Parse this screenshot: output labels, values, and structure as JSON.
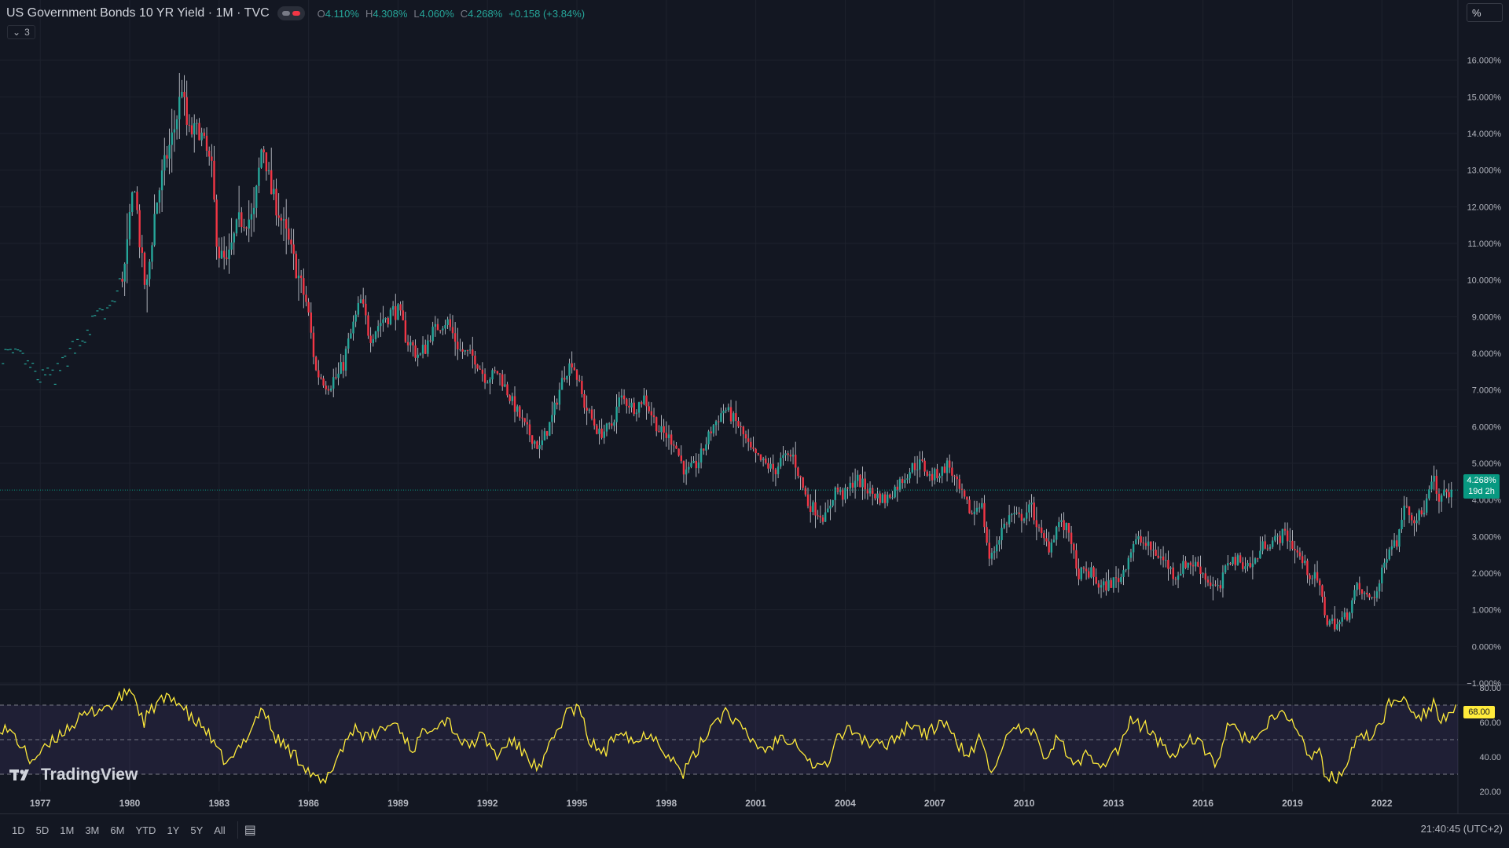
{
  "header": {
    "title": "US Government Bonds 10 YR Yield · 1M · TVC",
    "ohlc": [
      {
        "k": "O",
        "v": "4.110%"
      },
      {
        "k": "H",
        "v": "4.308%"
      },
      {
        "k": "L",
        "v": "4.060%"
      },
      {
        "k": "C",
        "v": "4.268%"
      },
      {
        "k": "",
        "v": "+0.158 (+3.84%)"
      }
    ],
    "collapse_count": "3"
  },
  "unit_label": "%",
  "current_price": {
    "value": "4.268%",
    "countdown": "19d 2h"
  },
  "rsi_current": "68.00",
  "branding": "TradingView",
  "ranges": [
    "1D",
    "5D",
    "1M",
    "3M",
    "6M",
    "YTD",
    "1Y",
    "5Y",
    "All"
  ],
  "clock": "21:40:45 (UTC+2)",
  "colors": {
    "up": "#26a69a",
    "down": "#f23645",
    "rsi": "#ffeb3b",
    "rsi_band": "#7e57c2",
    "bg": "#131722",
    "grid": "#1e222d"
  },
  "chart_data": [
    {
      "type": "candlestick",
      "title": "US Government Bonds 10 YR Yield · 1M · TVC",
      "y_unit": "%",
      "ylim": [
        -1.0,
        17.0
      ],
      "y_ticks": [
        "16.000%",
        "15.000%",
        "14.000%",
        "13.000%",
        "12.000%",
        "11.000%",
        "10.000%",
        "9.000%",
        "8.000%",
        "7.000%",
        "6.000%",
        "5.000%",
        "4.000%",
        "3.000%",
        "2.000%",
        "1.000%",
        "0.000%",
        "−1.000%"
      ],
      "y_tick_values": [
        16,
        15,
        14,
        13,
        12,
        11,
        10,
        9,
        8,
        7,
        6,
        5,
        4,
        3,
        2,
        1,
        0,
        -1
      ],
      "x_ticks": [
        "1977",
        "1980",
        "1983",
        "1986",
        "1989",
        "1992",
        "1995",
        "1998",
        "2001",
        "2004",
        "2007",
        "2010",
        "2013",
        "2016",
        "2019",
        "2022"
      ],
      "x_tick_years": [
        1977,
        1980,
        1983,
        1986,
        1989,
        1992,
        1995,
        1998,
        2001,
        2004,
        2007,
        2010,
        2013,
        2016,
        2019,
        2022
      ],
      "xlim": [
        1975.7,
        2024.6
      ],
      "grid": true,
      "anchors_year_yield": [
        [
          1975.8,
          8.0
        ],
        [
          1976.5,
          7.8
        ],
        [
          1977.0,
          7.3
        ],
        [
          1977.6,
          7.4
        ],
        [
          1978.2,
          8.2
        ],
        [
          1978.9,
          8.9
        ],
        [
          1979.5,
          9.3
        ],
        [
          1979.9,
          10.4
        ],
        [
          1980.2,
          12.8
        ],
        [
          1980.4,
          10.9
        ],
        [
          1980.6,
          9.6
        ],
        [
          1980.9,
          11.9
        ],
        [
          1981.2,
          13.1
        ],
        [
          1981.6,
          14.3
        ],
        [
          1981.8,
          15.3
        ],
        [
          1982.0,
          14.0
        ],
        [
          1982.4,
          14.1
        ],
        [
          1982.8,
          13.0
        ],
        [
          1983.0,
          10.8
        ],
        [
          1983.3,
          10.4
        ],
        [
          1983.7,
          11.6
        ],
        [
          1984.2,
          11.7
        ],
        [
          1984.5,
          13.8
        ],
        [
          1984.8,
          12.4
        ],
        [
          1985.2,
          11.5
        ],
        [
          1985.6,
          10.4
        ],
        [
          1986.0,
          9.3
        ],
        [
          1986.3,
          7.5
        ],
        [
          1986.7,
          7.2
        ],
        [
          1987.1,
          7.4
        ],
        [
          1987.5,
          8.6
        ],
        [
          1987.8,
          9.4
        ],
        [
          1988.1,
          8.5
        ],
        [
          1988.6,
          9.0
        ],
        [
          1989.0,
          9.2
        ],
        [
          1989.4,
          8.3
        ],
        [
          1989.8,
          7.9
        ],
        [
          1990.2,
          8.6
        ],
        [
          1990.7,
          8.9
        ],
        [
          1991.1,
          8.1
        ],
        [
          1991.6,
          7.9
        ],
        [
          1992.0,
          7.3
        ],
        [
          1992.4,
          7.5
        ],
        [
          1992.8,
          6.8
        ],
        [
          1993.3,
          6.0
        ],
        [
          1993.8,
          5.4
        ],
        [
          1994.2,
          6.2
        ],
        [
          1994.6,
          7.4
        ],
        [
          1994.9,
          7.8
        ],
        [
          1995.3,
          6.6
        ],
        [
          1995.8,
          5.8
        ],
        [
          1996.2,
          6.0
        ],
        [
          1996.5,
          6.8
        ],
        [
          1997.0,
          6.5
        ],
        [
          1997.3,
          6.8
        ],
        [
          1997.8,
          5.9
        ],
        [
          1998.3,
          5.6
        ],
        [
          1998.7,
          4.7
        ],
        [
          1999.1,
          5.0
        ],
        [
          1999.6,
          6.0
        ],
        [
          2000.0,
          6.5
        ],
        [
          2000.5,
          6.0
        ],
        [
          2000.9,
          5.3
        ],
        [
          2001.3,
          5.0
        ],
        [
          2001.7,
          4.8
        ],
        [
          2001.9,
          5.1
        ],
        [
          2002.3,
          5.2
        ],
        [
          2002.8,
          3.9
        ],
        [
          2003.4,
          3.5
        ],
        [
          2003.7,
          4.3
        ],
        [
          2004.0,
          4.1
        ],
        [
          2004.4,
          4.6
        ],
        [
          2004.9,
          4.2
        ],
        [
          2005.4,
          4.0
        ],
        [
          2005.9,
          4.5
        ],
        [
          2006.3,
          4.9
        ],
        [
          2006.6,
          5.0
        ],
        [
          2006.9,
          4.6
        ],
        [
          2007.3,
          4.8
        ],
        [
          2007.5,
          5.0
        ],
        [
          2007.9,
          4.2
        ],
        [
          2008.3,
          3.6
        ],
        [
          2008.6,
          4.0
        ],
        [
          2008.9,
          2.3
        ],
        [
          2009.3,
          3.2
        ],
        [
          2009.6,
          3.6
        ],
        [
          2009.9,
          3.5
        ],
        [
          2010.3,
          3.8
        ],
        [
          2010.6,
          3.0
        ],
        [
          2010.9,
          2.7
        ],
        [
          2011.2,
          3.4
        ],
        [
          2011.6,
          3.1
        ],
        [
          2011.8,
          2.0
        ],
        [
          2012.3,
          2.0
        ],
        [
          2012.6,
          1.6
        ],
        [
          2012.9,
          1.7
        ],
        [
          2013.3,
          1.9
        ],
        [
          2013.7,
          2.8
        ],
        [
          2013.9,
          2.9
        ],
        [
          2014.4,
          2.6
        ],
        [
          2014.8,
          2.3
        ],
        [
          2015.1,
          1.9
        ],
        [
          2015.5,
          2.3
        ],
        [
          2015.9,
          2.2
        ],
        [
          2016.2,
          1.8
        ],
        [
          2016.6,
          1.5
        ],
        [
          2016.9,
          2.4
        ],
        [
          2017.3,
          2.3
        ],
        [
          2017.7,
          2.2
        ],
        [
          2018.1,
          2.8
        ],
        [
          2018.5,
          2.9
        ],
        [
          2018.8,
          3.1
        ],
        [
          2019.1,
          2.7
        ],
        [
          2019.6,
          2.0
        ],
        [
          2019.9,
          1.8
        ],
        [
          2020.2,
          0.7
        ],
        [
          2020.6,
          0.6
        ],
        [
          2020.9,
          0.9
        ],
        [
          2021.2,
          1.6
        ],
        [
          2021.6,
          1.3
        ],
        [
          2021.9,
          1.5
        ],
        [
          2022.3,
          2.8
        ],
        [
          2022.6,
          2.9
        ],
        [
          2022.8,
          4.0
        ],
        [
          2023.1,
          3.5
        ],
        [
          2023.4,
          3.6
        ],
        [
          2023.8,
          4.6
        ],
        [
          2023.9,
          3.9
        ],
        [
          2024.2,
          4.2
        ],
        [
          2024.4,
          4.27
        ]
      ],
      "last_close": 4.268
    },
    {
      "type": "line",
      "title": "RSI",
      "series": [
        {
          "values_description": "oscillator"
        }
      ],
      "ylim": [
        20,
        80
      ],
      "y_ticks": [
        "80.00",
        "60.00",
        "40.00",
        "20.00"
      ],
      "y_tick_values": [
        80,
        60,
        40,
        20
      ],
      "band": [
        30,
        70
      ],
      "midline": 50,
      "anchors_year_rsi": [
        [
          1975.7,
          58
        ],
        [
          1976.2,
          52
        ],
        [
          1976.7,
          38
        ],
        [
          1977.2,
          44
        ],
        [
          1977.8,
          55
        ],
        [
          1978.4,
          62
        ],
        [
          1979.0,
          68
        ],
        [
          1979.5,
          70
        ],
        [
          1980.1,
          80
        ],
        [
          1980.5,
          60
        ],
        [
          1981.0,
          72
        ],
        [
          1981.6,
          74
        ],
        [
          1982.1,
          62
        ],
        [
          1982.6,
          56
        ],
        [
          1983.0,
          42
        ],
        [
          1983.4,
          36
        ],
        [
          1983.9,
          50
        ],
        [
          1984.5,
          69
        ],
        [
          1984.9,
          52
        ],
        [
          1985.4,
          44
        ],
        [
          1985.9,
          36
        ],
        [
          1986.2,
          28
        ],
        [
          1986.6,
          24
        ],
        [
          1987.0,
          40
        ],
        [
          1987.6,
          58
        ],
        [
          1988.0,
          50
        ],
        [
          1988.5,
          56
        ],
        [
          1989.0,
          60
        ],
        [
          1989.5,
          44
        ],
        [
          1990.1,
          58
        ],
        [
          1990.7,
          62
        ],
        [
          1991.3,
          46
        ],
        [
          1991.9,
          52
        ],
        [
          1992.4,
          40
        ],
        [
          1992.8,
          50
        ],
        [
          1993.3,
          42
        ],
        [
          1993.8,
          32
        ],
        [
          1994.3,
          52
        ],
        [
          1994.7,
          66
        ],
        [
          1995.1,
          68
        ],
        [
          1995.5,
          48
        ],
        [
          1996.0,
          42
        ],
        [
          1996.5,
          58
        ],
        [
          1997.0,
          48
        ],
        [
          1997.5,
          55
        ],
        [
          1998.0,
          44
        ],
        [
          1998.6,
          30
        ],
        [
          1999.1,
          44
        ],
        [
          1999.6,
          60
        ],
        [
          2000.1,
          67
        ],
        [
          2000.6,
          55
        ],
        [
          2001.0,
          48
        ],
        [
          2001.4,
          44
        ],
        [
          2001.9,
          52
        ],
        [
          2002.4,
          50
        ],
        [
          2002.9,
          36
        ],
        [
          2003.4,
          34
        ],
        [
          2003.8,
          52
        ],
        [
          2004.3,
          56
        ],
        [
          2004.8,
          48
        ],
        [
          2005.3,
          46
        ],
        [
          2005.9,
          54
        ],
        [
          2006.3,
          60
        ],
        [
          2006.8,
          52
        ],
        [
          2007.3,
          62
        ],
        [
          2007.7,
          50
        ],
        [
          2008.2,
          40
        ],
        [
          2008.6,
          52
        ],
        [
          2008.9,
          30
        ],
        [
          2009.4,
          50
        ],
        [
          2009.9,
          56
        ],
        [
          2010.4,
          52
        ],
        [
          2010.8,
          40
        ],
        [
          2011.2,
          52
        ],
        [
          2011.7,
          34
        ],
        [
          2012.2,
          42
        ],
        [
          2012.7,
          36
        ],
        [
          2013.2,
          44
        ],
        [
          2013.6,
          60
        ],
        [
          2014.1,
          58
        ],
        [
          2014.6,
          48
        ],
        [
          2015.1,
          40
        ],
        [
          2015.5,
          52
        ],
        [
          2016.0,
          46
        ],
        [
          2016.5,
          36
        ],
        [
          2016.9,
          58
        ],
        [
          2017.4,
          52
        ],
        [
          2017.9,
          50
        ],
        [
          2018.3,
          60
        ],
        [
          2018.8,
          66
        ],
        [
          2019.2,
          56
        ],
        [
          2019.6,
          40
        ],
        [
          2019.9,
          44
        ],
        [
          2020.2,
          28
        ],
        [
          2020.6,
          28
        ],
        [
          2021.0,
          40
        ],
        [
          2021.3,
          56
        ],
        [
          2021.7,
          50
        ],
        [
          2022.0,
          58
        ],
        [
          2022.3,
          72
        ],
        [
          2022.6,
          70
        ],
        [
          2022.8,
          76
        ],
        [
          2023.1,
          66
        ],
        [
          2023.4,
          64
        ],
        [
          2023.8,
          72
        ],
        [
          2024.0,
          60
        ],
        [
          2024.3,
          66
        ],
        [
          2024.5,
          68
        ]
      ]
    }
  ]
}
